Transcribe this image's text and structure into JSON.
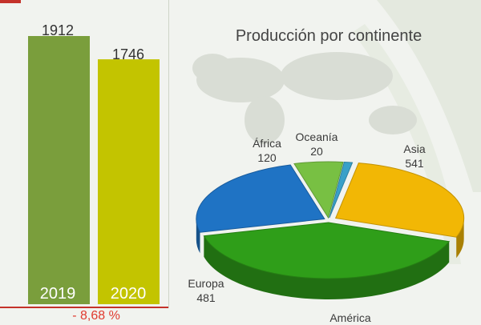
{
  "bar_chart": {
    "bars": [
      {
        "year": "2019",
        "value_label": "1912",
        "color": "#7a9e3c"
      },
      {
        "year": "2020",
        "value_label": "1746",
        "color": "#c3c400"
      }
    ],
    "change_label": "- 8,68 %"
  },
  "pie_chart": {
    "title": "Producción por continente",
    "slices": [
      {
        "name": "Asia",
        "value_label": "541",
        "color": "#f2b705"
      },
      {
        "name": "América",
        "value_label": "",
        "color": "#2f9e19"
      },
      {
        "name": "Europa",
        "value_label": "481",
        "color": "#1f73c4"
      },
      {
        "name": "África",
        "value_label": "120",
        "color": "#78c043"
      },
      {
        "name": "Oceanía",
        "value_label": "20",
        "color": "#39a0c9"
      }
    ]
  },
  "chart_data": [
    {
      "type": "bar",
      "categories": [
        "2019",
        "2020"
      ],
      "values": [
        1912,
        1746
      ],
      "title": "",
      "xlabel": "",
      "ylabel": "",
      "ylim": [
        0,
        2000
      ],
      "annotations": [
        "- 8,68 %"
      ]
    },
    {
      "type": "pie",
      "title": "Producción por continente",
      "categories": [
        "Asia",
        "América",
        "Europa",
        "África",
        "Oceanía"
      ],
      "values": [
        541,
        796,
        481,
        120,
        20
      ]
    }
  ]
}
